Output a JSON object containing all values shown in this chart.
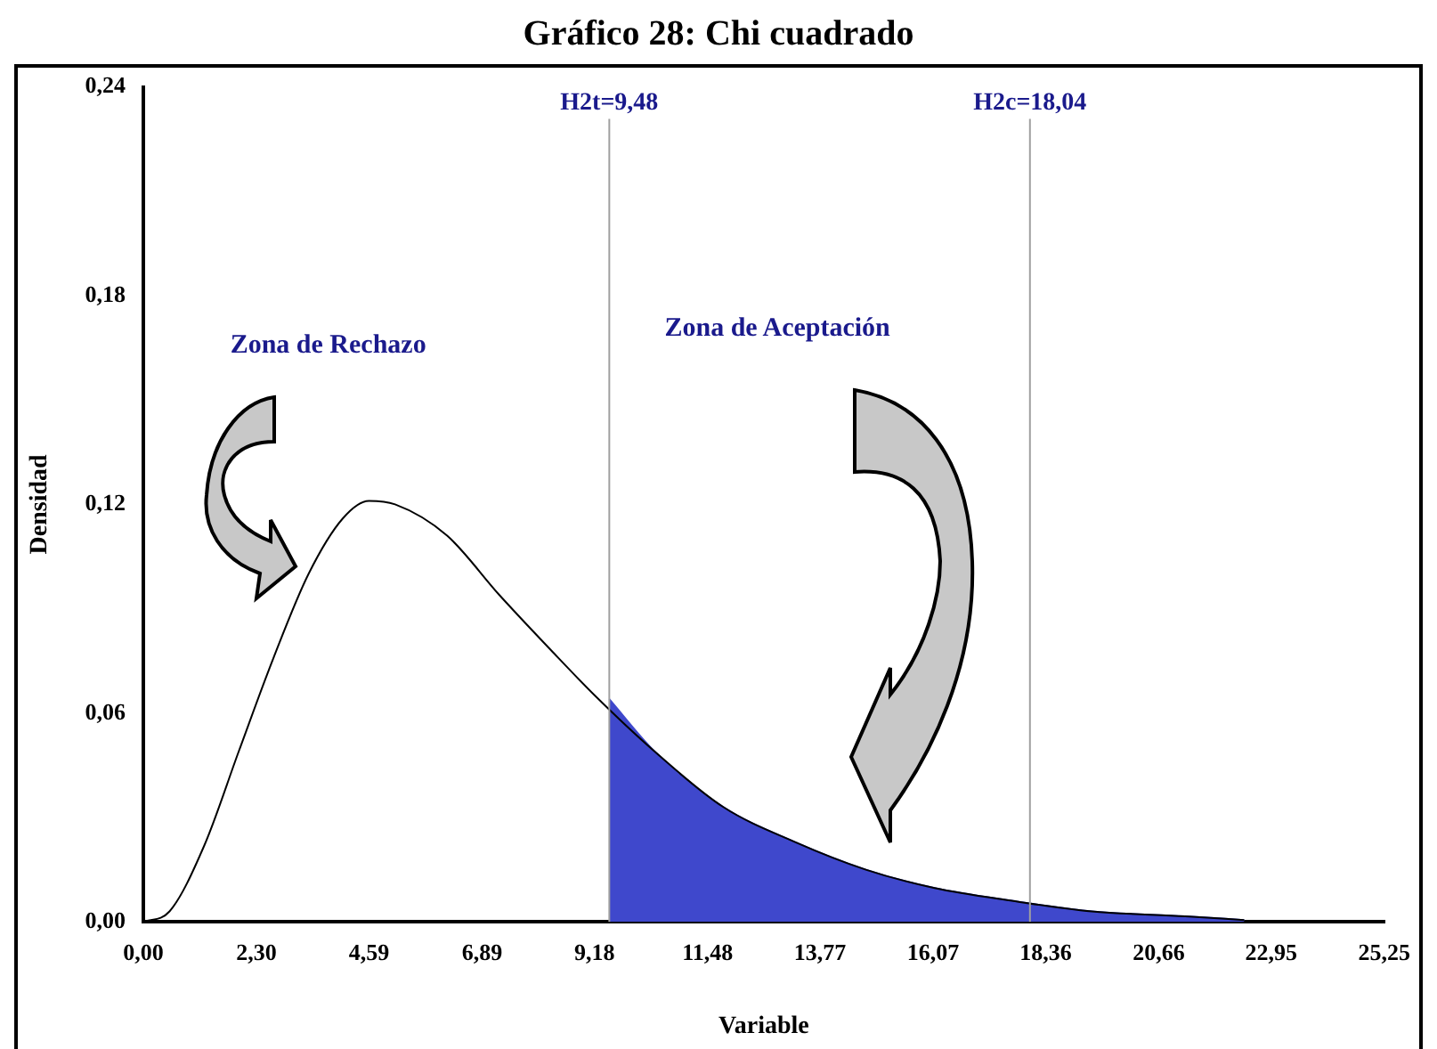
{
  "chart_data": {
    "type": "line",
    "title": "Gráfico 28: Chi cuadrado",
    "xlabel": "Variable",
    "ylabel": "Densidad",
    "x": [
      0,
      0.53,
      1.24,
      1.94,
      2.65,
      3.36,
      4.06,
      4.59,
      5.12,
      6.18,
      7.24,
      8.3,
      9.19,
      10.4,
      11.8,
      13.25,
      14.7,
      16.1,
      17.7,
      19.3,
      21.2,
      22.4
    ],
    "series": [
      {
        "color": "#000000",
        "values": [
          0,
          0.003,
          0.022,
          0.049,
          0.076,
          0.1,
          0.116,
          0.121,
          0.12,
          0.111,
          0.094,
          0.078,
          0.065,
          0.049,
          0.033,
          0.023,
          0.015,
          0.0097,
          0.006,
          0.003,
          0.0016,
          0.0005
        ]
      },
      {
        "type": "area",
        "color": "#3f48cc",
        "x": [
          9.48,
          10.4,
          11.8,
          13.25,
          14.7,
          16.1,
          17.7,
          19.3,
          21.2,
          22.4
        ],
        "values": [
          0.064,
          0.049,
          0.033,
          0.023,
          0.015,
          0.0097,
          0.006,
          0.003,
          0.0016,
          0.0005
        ]
      }
    ],
    "xlim": [
      0,
      25.25
    ],
    "xticks": [
      {
        "value": 0,
        "label": "0,00"
      },
      {
        "value": 2.3,
        "label": "2,30"
      },
      {
        "value": 4.59,
        "label": "4,59"
      },
      {
        "value": 6.89,
        "label": "6,89"
      },
      {
        "value": 9.18,
        "label": "9,18"
      },
      {
        "value": 11.48,
        "label": "11,48"
      },
      {
        "value": 13.77,
        "label": "13,77"
      },
      {
        "value": 16.07,
        "label": "16,07"
      },
      {
        "value": 18.36,
        "label": "18,36"
      },
      {
        "value": 20.66,
        "label": "20,66"
      },
      {
        "value": 22.95,
        "label": "22,95"
      },
      {
        "value": 25.25,
        "label": "25,25"
      }
    ],
    "ylim": [
      0,
      0.24
    ],
    "yticks": [
      {
        "value": 0,
        "label": "0,00"
      },
      {
        "value": 0.06,
        "label": "0,06"
      },
      {
        "value": 0.12,
        "label": "0,12"
      },
      {
        "value": 0.18,
        "label": "0,18"
      },
      {
        "value": 0.24,
        "label": "0,24"
      }
    ],
    "ref_lines": [
      {
        "axis": "x",
        "value": 9.48,
        "label": "H2t=9,48",
        "color": "#a0a0a0"
      },
      {
        "axis": "x",
        "value": 18.04,
        "label": "H2c=18,04",
        "color": "#a0a0a0"
      }
    ],
    "annotations": [
      "Zona de Rechazo",
      "Zona de Aceptación"
    ],
    "grid": false,
    "legend": false,
    "marker": "none",
    "line_style": "solid"
  }
}
